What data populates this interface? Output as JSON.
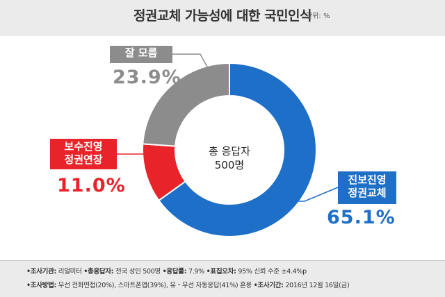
{
  "header": {
    "title": "정권교체 가능성에 대한 국민인식",
    "unit": "단위: %"
  },
  "chart_data": {
    "type": "pie",
    "title": "정권교체 가능성에 대한 국민인식",
    "center_label": [
      "총 응답자",
      "500명"
    ],
    "slices": [
      {
        "label": [
          "진보진영",
          "정권교체"
        ],
        "value": 65.1,
        "value_text": "65.1%",
        "color": "#1e6fc8"
      },
      {
        "label": [
          "보수진영",
          "정권연장"
        ],
        "value": 11.0,
        "value_text": "11.0%",
        "color": "#e8232a"
      },
      {
        "label": [
          "잘 모름"
        ],
        "value": 23.9,
        "value_text": "23.9%",
        "color": "#8c8c8c"
      }
    ]
  },
  "footer": {
    "line1": [
      {
        "key": "•조사기관:",
        "val": "리얼미터"
      },
      {
        "key": "•총응답자:",
        "val": "전국 성인 500명"
      },
      {
        "key": "•응답률:",
        "val": "7.9%"
      },
      {
        "key": "•표집오차:",
        "val": "95% 신뢰 수준 ±4.4%p"
      }
    ],
    "line2": [
      {
        "key": "•조사방법:",
        "val": "무선 전화면접(20%), 스마트폰앱(39%), 유・무선 자동응답(41%) 혼용"
      },
      {
        "key": "•조사기간:",
        "val": "2016년 12월 16일(금)"
      }
    ]
  }
}
